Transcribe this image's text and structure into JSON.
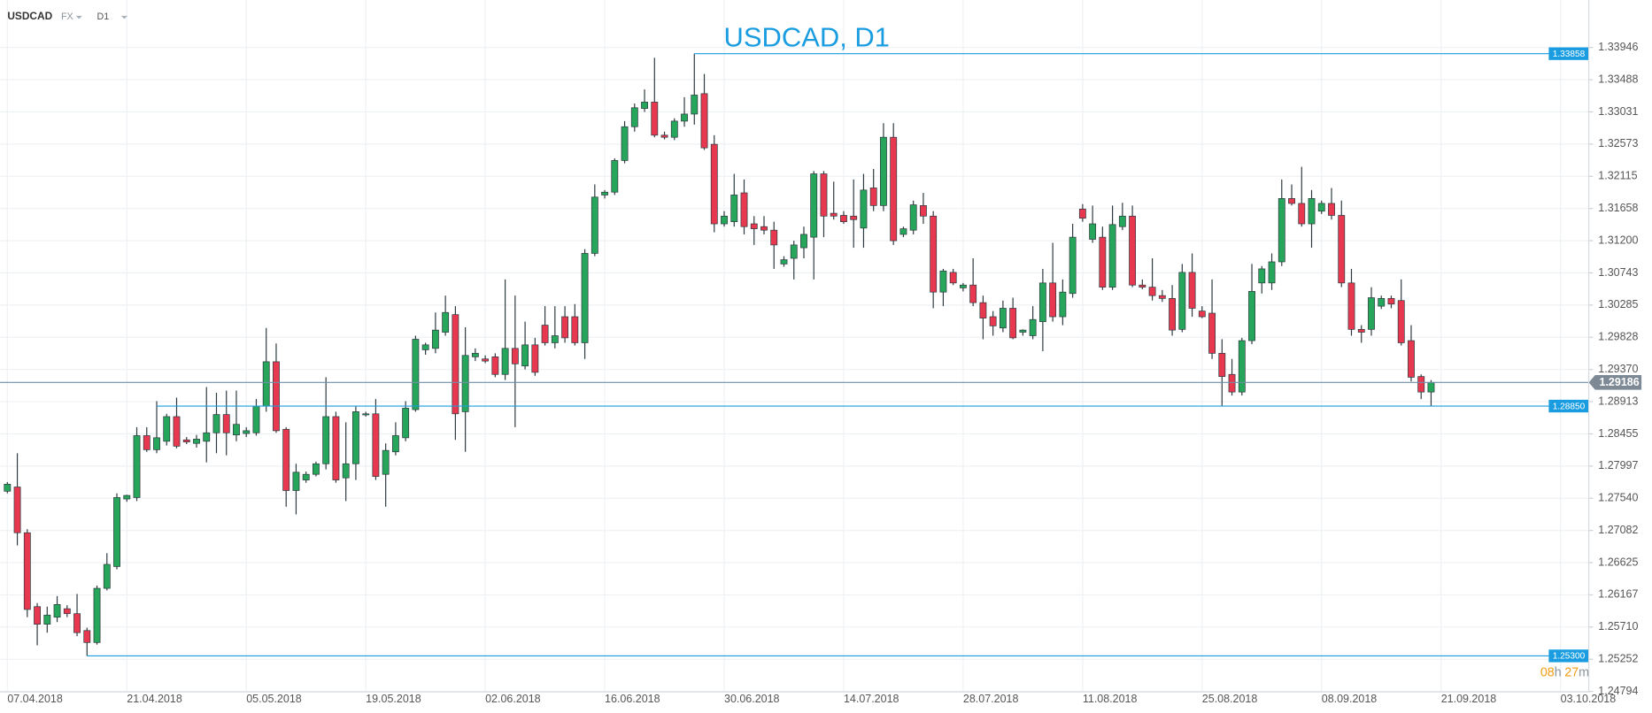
{
  "toolbar": {
    "symbol": "USDCAD",
    "market": "FX",
    "timeframe": "D1"
  },
  "chart_data": {
    "type": "candlestick",
    "title": "USDCAD, D1",
    "up_color": "#26a65b",
    "down_color": "#e8384f",
    "level_color": "#1a9de0",
    "grid": true,
    "categories": [
      null,
      null,
      null,
      null,
      null,
      null,
      null,
      null,
      null,
      null,
      null,
      null,
      null,
      null,
      null,
      null,
      null,
      null,
      null,
      null,
      null,
      null,
      null,
      null,
      null,
      null,
      null,
      null,
      null,
      null,
      null,
      null,
      null,
      null,
      null,
      null,
      null,
      null,
      null,
      null,
      null,
      null,
      null,
      null,
      null,
      null,
      null,
      null,
      null,
      null,
      null,
      null,
      null,
      null,
      null,
      null,
      null,
      null,
      null,
      null,
      null,
      null,
      null,
      null,
      null,
      null,
      null,
      null,
      null,
      null,
      null,
      null,
      null,
      null,
      null,
      null,
      null,
      null,
      null,
      null,
      null,
      null,
      null,
      null,
      null,
      null,
      null,
      null,
      null,
      null,
      null,
      null,
      null,
      null,
      null,
      null,
      null,
      null,
      null,
      null,
      null,
      null,
      null,
      null,
      null,
      null,
      null,
      null,
      null,
      null,
      null,
      null,
      null,
      null,
      null,
      null,
      null,
      null,
      null,
      null,
      null,
      null,
      null,
      null,
      null,
      null,
      null,
      null,
      null,
      null,
      null,
      null,
      null,
      null,
      null,
      null,
      null,
      null,
      null,
      null,
      null,
      null,
      null,
      null
    ],
    "open": [
      1.2764,
      1.277,
      1.2705,
      1.26,
      1.2575,
      1.2585,
      1.2597,
      1.259,
      1.2566,
      1.2549,
      1.2626,
      1.2657,
      1.2753,
      1.2755,
      1.2843,
      1.2823,
      1.2835,
      1.287,
      1.2837,
      1.2832,
      1.2835,
      1.2847,
      1.2873,
      1.2844,
      1.2846,
      1.2847,
      1.2885,
      1.2948,
      1.2852,
      1.2765,
      1.278,
      1.2788,
      1.2803,
      1.287,
      1.2783,
      1.2803,
      1.2873,
      1.2874,
      1.2788,
      1.282,
      1.284,
      1.288,
      1.2965,
      1.2967,
      1.299,
      1.3015,
      1.2877,
      1.2955,
      1.2952,
      1.2955,
      1.293,
      1.2967,
      1.2942,
      1.2972,
      1.3,
      1.2975,
      1.3012,
      1.3012,
      1.2975,
      1.3102,
      1.3185,
      1.3189,
      1.3234,
      1.3282,
      1.3308,
      1.3317,
      1.327,
      1.3267,
      1.329,
      1.33,
      1.3329,
      1.3257,
      1.3144,
      1.3147,
      1.3188,
      1.3144,
      1.314,
      1.3135,
      1.3087,
      1.3095,
      1.311,
      1.3125,
      1.3215,
      1.3159,
      1.3156,
      1.3155,
      1.3138,
      1.3195,
      1.317,
      1.3267,
      1.3129,
      1.3135,
      1.317,
      1.3155,
      1.3047,
      1.3075,
      1.3053,
      1.3057,
      1.3032,
      1.3012,
      1.2996,
      1.3024,
      1.299,
      1.2985,
      1.3005,
      1.306,
      1.3012,
      1.3045,
      1.3165,
      1.3122,
      1.3125,
      1.3054,
      1.314,
      1.3155,
      1.3057,
      1.3054,
      1.3042,
      1.3038,
      1.2994,
      1.3075,
      1.302,
      1.3017,
      1.296,
      1.293,
      1.2905,
      1.2978,
      1.306,
      1.306,
      1.309,
      1.318,
      1.3173,
      1.3144,
      1.3162,
      1.3173,
      1.3156,
      1.306,
      1.2994,
      1.2994,
      1.3027,
      1.3038,
      1.3035,
      1.2978,
      1.2927,
      1.2905
    ],
    "high": [
      1.2777,
      1.2818,
      1.271,
      1.2605,
      1.26,
      1.2615,
      1.2602,
      1.2618,
      1.257,
      1.263,
      1.2676,
      1.2761,
      1.2759,
      1.2855,
      1.2855,
      1.2892,
      1.2874,
      1.2897,
      1.2841,
      1.2844,
      1.2912,
      1.2904,
      1.2907,
      1.2907,
      1.2855,
      1.2895,
      1.2996,
      1.2974,
      1.2855,
      1.2803,
      1.2792,
      1.2806,
      1.2926,
      1.2877,
      1.2862,
      1.2885,
      1.2877,
      1.2895,
      1.2832,
      1.2862,
      1.2892,
      1.2985,
      1.2975,
      1.3018,
      1.3042,
      1.3027,
      1.2997,
      1.2967,
      1.2957,
      1.296,
      1.3065,
      1.3042,
      1.3005,
      1.2982,
      1.3027,
      1.3027,
      1.3027,
      1.303,
      1.3108,
      1.32,
      1.3192,
      1.3237,
      1.329,
      1.3315,
      1.3335,
      1.338,
      1.3275,
      1.3294,
      1.3324,
      1.33858,
      1.3357,
      1.327,
      1.3162,
      1.3215,
      1.3207,
      1.3155,
      1.3155,
      1.3147,
      1.3098,
      1.312,
      1.314,
      1.3219,
      1.3219,
      1.3204,
      1.3162,
      1.3207,
      1.3215,
      1.3222,
      1.3287,
      1.3287,
      1.314,
      1.3177,
      1.3188,
      1.3162,
      1.308,
      1.308,
      1.306,
      1.3095,
      1.3042,
      1.302,
      1.3035,
      1.3039,
      1.2994,
      1.3027,
      1.308,
      1.3117,
      1.3065,
      1.3144,
      1.3172,
      1.317,
      1.314,
      1.317,
      1.3174,
      1.317,
      1.3065,
      1.3095,
      1.305,
      1.3057,
      1.3087,
      1.3102,
      1.3027,
      1.3065,
      1.298,
      1.2952,
      1.2982,
      1.3087,
      1.3084,
      1.3102,
      1.3207,
      1.32,
      1.3225,
      1.3192,
      1.3177,
      1.3195,
      1.3177,
      1.308,
      1.3,
      1.3054,
      1.3042,
      1.3042,
      1.3065,
      1.3,
      1.293,
      1.2922
    ],
    "low": [
      1.2761,
      1.2687,
      1.2585,
      1.2545,
      1.2563,
      1.2578,
      1.2585,
      1.2558,
      1.253,
      1.2546,
      1.2623,
      1.2653,
      1.2749,
      1.275,
      1.282,
      1.2818,
      1.2829,
      1.2825,
      1.2831,
      1.2826,
      1.2805,
      1.2818,
      1.2815,
      1.2835,
      1.2841,
      1.2843,
      1.2877,
      1.2847,
      1.2742,
      1.2731,
      1.2776,
      1.2785,
      1.2795,
      1.2776,
      1.275,
      1.278,
      1.287,
      1.278,
      1.2742,
      1.2815,
      1.2835,
      1.2877,
      1.2958,
      1.296,
      1.2985,
      1.2837,
      1.282,
      1.2949,
      1.2946,
      1.2926,
      1.2922,
      1.2855,
      1.2937,
      1.2928,
      1.2971,
      1.2967,
      1.2975,
      1.2971,
      1.2952,
      1.3098,
      1.318,
      1.3185,
      1.323,
      1.3275,
      1.3303,
      1.3267,
      1.3264,
      1.3263,
      1.3282,
      1.3285,
      1.3249,
      1.3132,
      1.314,
      1.314,
      1.3129,
      1.3114,
      1.3129,
      1.308,
      1.3083,
      1.3065,
      1.3095,
      1.3065,
      1.3125,
      1.315,
      1.3144,
      1.311,
      1.311,
      1.3162,
      1.3162,
      1.3114,
      1.3125,
      1.3129,
      1.3144,
      1.3024,
      1.3027,
      1.3057,
      1.3048,
      1.3027,
      1.298,
      1.2985,
      1.299,
      1.298,
      1.2985,
      1.298,
      1.2963,
      1.3005,
      1.3,
      1.3039,
      1.3147,
      1.3117,
      1.305,
      1.305,
      1.3135,
      1.3054,
      1.3051,
      1.3035,
      1.3033,
      1.2985,
      1.299,
      1.3012,
      1.301,
      1.2952,
      1.2885,
      1.29,
      1.29,
      1.2973,
      1.3045,
      1.305,
      1.3084,
      1.317,
      1.314,
      1.311,
      1.3158,
      1.315,
      1.3054,
      1.2985,
      1.2975,
      1.2985,
      1.3023,
      1.3024,
      1.2971,
      1.292,
      1.2895,
      1.2885
    ],
    "close": [
      1.2774,
      1.2705,
      1.2596,
      1.2575,
      1.2588,
      1.2603,
      1.259,
      1.2563,
      1.2549,
      1.2626,
      1.266,
      1.2755,
      1.2758,
      1.2843,
      1.2823,
      1.284,
      1.287,
      1.2828,
      1.2834,
      1.2838,
      1.2847,
      1.2873,
      1.2847,
      1.2859,
      1.285,
      1.2885,
      1.2948,
      1.285,
      1.2765,
      1.2791,
      1.2788,
      1.2803,
      1.287,
      1.278,
      1.2803,
      1.2877,
      1.2874,
      1.2785,
      1.2822,
      1.2843,
      1.2882,
      1.298,
      1.2972,
      1.2993,
      1.3018,
      1.2874,
      1.2957,
      1.296,
      1.2949,
      1.293,
      1.2967,
      1.2945,
      1.2972,
      1.2933,
      1.2975,
      1.2985,
      1.2982,
      1.2975,
      1.3102,
      1.3182,
      1.3189,
      1.3234,
      1.3282,
      1.3309,
      1.3317,
      1.327,
      1.3267,
      1.329,
      1.33,
      1.3327,
      1.3252,
      1.3144,
      1.3155,
      1.3185,
      1.314,
      1.3137,
      1.3135,
      1.3114,
      1.3093,
      1.3114,
      1.3129,
      1.3215,
      1.3155,
      1.3155,
      1.3147,
      1.315,
      1.3192,
      1.317,
      1.3267,
      1.312,
      1.3137,
      1.3171,
      1.3155,
      1.3047,
      1.3077,
      1.306,
      1.3057,
      1.3032,
      1.301,
      1.2999,
      1.3024,
      1.2982,
      1.2993,
      1.3008,
      1.306,
      1.3012,
      1.3047,
      1.3125,
      1.3152,
      1.3144,
      1.3054,
      1.3143,
      1.3155,
      1.3057,
      1.3054,
      1.3042,
      1.3038,
      1.2993,
      1.3075,
      1.3024,
      1.3012,
      1.296,
      1.2927,
      1.2905,
      1.2978,
      1.3048,
      1.308,
      1.309,
      1.318,
      1.3173,
      1.3144,
      1.318,
      1.3173,
      1.3156,
      1.306,
      1.2994,
      1.299,
      1.3039,
      1.3038,
      1.303,
      1.2975,
      1.2926,
      1.2905,
      1.29186
    ],
    "xlim": [
      -0.74,
      158.84
    ],
    "xticks": [
      {
        "value": 0,
        "label": "07.04.2018"
      },
      {
        "value": 12,
        "label": "21.04.2018"
      },
      {
        "value": 24,
        "label": "05.05.2018"
      },
      {
        "value": 36,
        "label": "19.05.2018"
      },
      {
        "value": 48,
        "label": "02.06.2018"
      },
      {
        "value": 60,
        "label": "16.06.2018"
      },
      {
        "value": 72,
        "label": "30.06.2018"
      },
      {
        "value": 84,
        "label": "14.07.2018"
      },
      {
        "value": 96,
        "label": "28.07.2018"
      },
      {
        "value": 108,
        "label": "11.08.2018"
      },
      {
        "value": 120,
        "label": "25.08.2018"
      },
      {
        "value": 132,
        "label": "08.09.2018"
      },
      {
        "value": 144,
        "label": "21.09.2018"
      },
      {
        "value": 156,
        "label": "03.10.2018"
      }
    ],
    "ylim": [
      1.24788,
      1.34621
    ],
    "yticks": [
      1.33946,
      1.33488,
      1.33031,
      1.32573,
      1.32115,
      1.31658,
      {
        "value": 1.312,
        "label": "1.31200"
      },
      1.30743,
      1.30285,
      1.29828,
      {
        "value": 1.2937,
        "label": "1.29370"
      },
      1.28913,
      1.28455,
      1.27997,
      {
        "value": 1.2754,
        "label": "1.27540"
      },
      1.27082,
      1.26625,
      1.26167,
      {
        "value": 1.2571,
        "label": "1.25710"
      },
      1.25252,
      1.24794
    ],
    "levels": [
      1.33858,
      {
        "value": 1.2885,
        "label": "1.28850"
      },
      {
        "value": 1.253,
        "label": "1.25300"
      }
    ],
    "current_price": 1.29186,
    "countdown": [
      "08",
      "h",
      "27",
      "m"
    ]
  }
}
